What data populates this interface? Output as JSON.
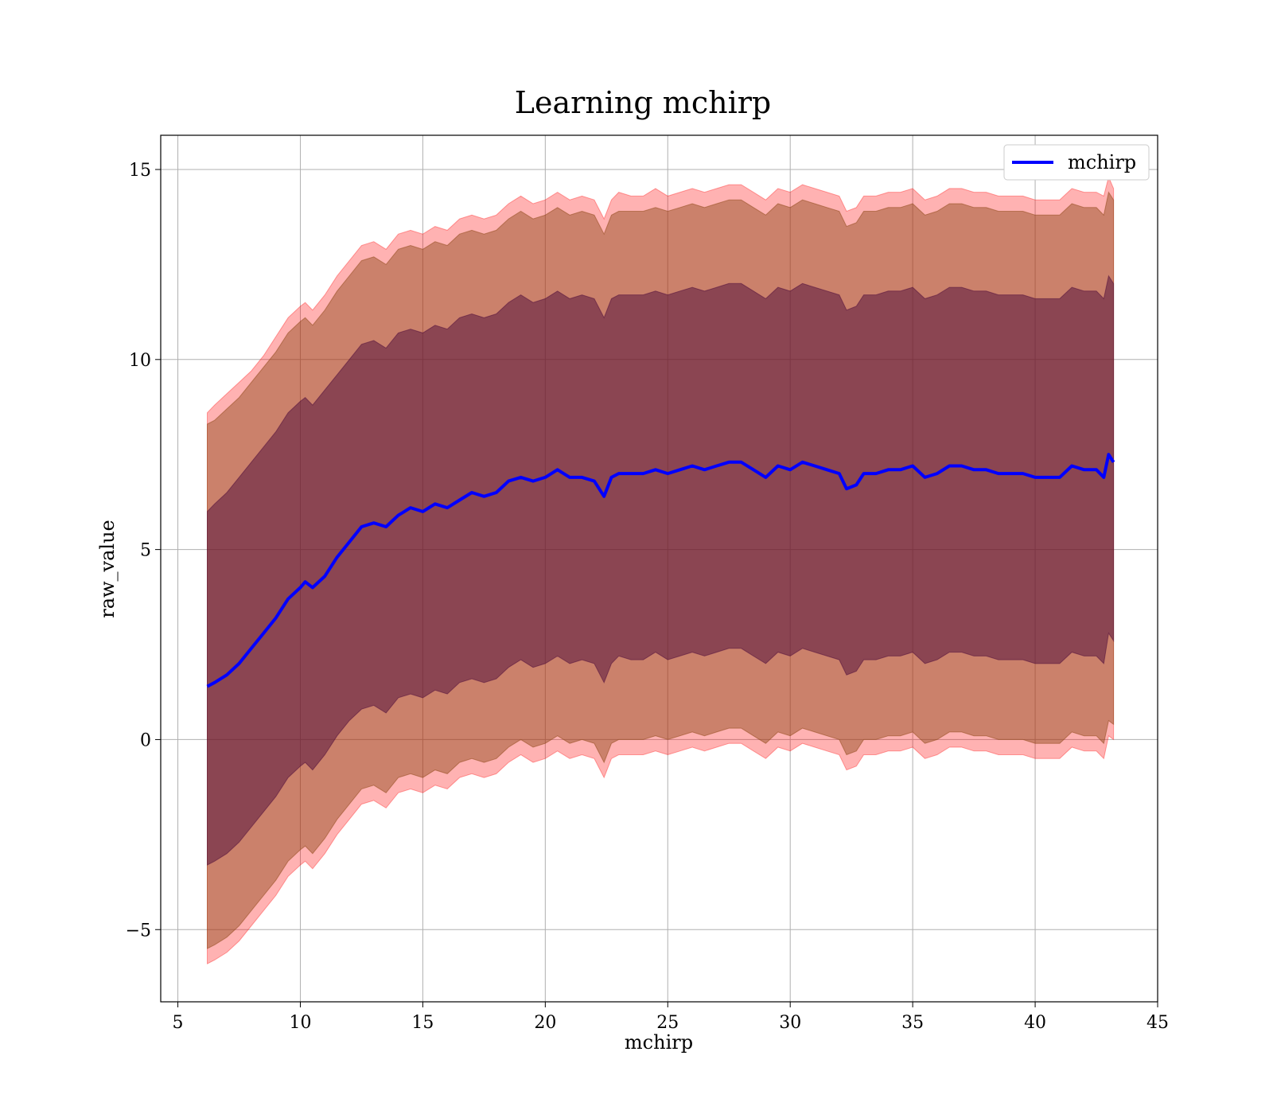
{
  "chart_data": {
    "type": "line",
    "title": "Learning mchirp",
    "xlabel": "mchirp",
    "ylabel": "raw_value",
    "xlim": [
      4.3,
      45
    ],
    "ylim": [
      -6.9,
      15.9
    ],
    "xticks": [
      5,
      10,
      15,
      20,
      25,
      30,
      35,
      40,
      45
    ],
    "yticks": [
      -5,
      0,
      5,
      10,
      15
    ],
    "ytick_labels": [
      "−5",
      "0",
      "5",
      "10",
      "15"
    ],
    "grid": true,
    "legend": {
      "position": "top-right",
      "entries": [
        "mchirp"
      ]
    },
    "colors": {
      "line": "#0000ff",
      "band_outer": "#ff0000",
      "band_middle": "#8b4513",
      "band_inner": "#4b0a3a",
      "grid": "#b0b0b0"
    },
    "series": [
      {
        "name": "mchirp",
        "x": [
          6.2,
          6.5,
          7.0,
          7.5,
          8.0,
          8.5,
          9.0,
          9.5,
          10.0,
          10.2,
          10.5,
          11.0,
          11.5,
          12.0,
          12.5,
          13.0,
          13.5,
          14.0,
          14.5,
          15.0,
          15.5,
          16.0,
          16.5,
          17.0,
          17.5,
          18.0,
          18.5,
          19.0,
          19.5,
          20.0,
          20.5,
          21.0,
          21.5,
          22.0,
          22.4,
          22.7,
          23.0,
          23.5,
          24.0,
          24.5,
          25.0,
          25.5,
          26.0,
          26.5,
          27.0,
          27.5,
          28.0,
          28.5,
          29.0,
          29.5,
          30.0,
          30.5,
          31.0,
          31.5,
          32.0,
          32.3,
          32.7,
          33.0,
          33.5,
          34.0,
          34.5,
          35.0,
          35.5,
          36.0,
          36.5,
          37.0,
          37.5,
          38.0,
          38.5,
          39.0,
          39.5,
          40.0,
          40.5,
          41.0,
          41.5,
          42.0,
          42.5,
          42.8,
          43.0,
          43.2
        ],
        "mean": [
          1.4,
          1.5,
          1.7,
          2.0,
          2.4,
          2.8,
          3.2,
          3.7,
          4.0,
          4.15,
          4.0,
          4.3,
          4.8,
          5.2,
          5.6,
          5.7,
          5.6,
          5.9,
          6.1,
          6.0,
          6.2,
          6.1,
          6.3,
          6.5,
          6.4,
          6.5,
          6.8,
          6.9,
          6.8,
          6.9,
          7.1,
          6.9,
          6.9,
          6.8,
          6.4,
          6.9,
          7.0,
          7.0,
          7.0,
          7.1,
          7.0,
          7.1,
          7.2,
          7.1,
          7.2,
          7.3,
          7.3,
          7.1,
          6.9,
          7.2,
          7.1,
          7.3,
          7.2,
          7.1,
          7.0,
          6.6,
          6.7,
          7.0,
          7.0,
          7.1,
          7.1,
          7.2,
          6.9,
          7.0,
          7.2,
          7.2,
          7.1,
          7.1,
          7.0,
          7.0,
          7.0,
          6.9,
          6.9,
          6.9,
          7.2,
          7.1,
          7.1,
          6.9,
          7.5,
          7.3
        ],
        "band_outer_upper": [
          8.6,
          8.8,
          9.1,
          9.4,
          9.7,
          10.1,
          10.6,
          11.1,
          11.4,
          11.5,
          11.3,
          11.7,
          12.2,
          12.6,
          13.0,
          13.1,
          12.9,
          13.3,
          13.4,
          13.3,
          13.5,
          13.4,
          13.7,
          13.8,
          13.7,
          13.8,
          14.1,
          14.3,
          14.1,
          14.2,
          14.4,
          14.2,
          14.3,
          14.2,
          13.7,
          14.2,
          14.4,
          14.3,
          14.3,
          14.5,
          14.3,
          14.4,
          14.5,
          14.4,
          14.5,
          14.6,
          14.6,
          14.4,
          14.2,
          14.5,
          14.4,
          14.6,
          14.5,
          14.4,
          14.3,
          13.9,
          14.0,
          14.3,
          14.3,
          14.4,
          14.4,
          14.5,
          14.2,
          14.3,
          14.5,
          14.5,
          14.4,
          14.4,
          14.3,
          14.3,
          14.3,
          14.2,
          14.2,
          14.2,
          14.5,
          14.4,
          14.4,
          14.3,
          14.8,
          14.5
        ],
        "band_middle_upper": [
          8.3,
          8.4,
          8.7,
          9.0,
          9.4,
          9.8,
          10.2,
          10.7,
          11.0,
          11.1,
          10.9,
          11.3,
          11.8,
          12.2,
          12.6,
          12.7,
          12.5,
          12.9,
          13.0,
          12.9,
          13.1,
          13.0,
          13.3,
          13.4,
          13.3,
          13.4,
          13.7,
          13.9,
          13.7,
          13.8,
          14.0,
          13.8,
          13.9,
          13.8,
          13.3,
          13.8,
          13.9,
          13.9,
          13.9,
          14.0,
          13.9,
          14.0,
          14.1,
          14.0,
          14.1,
          14.2,
          14.2,
          14.0,
          13.8,
          14.1,
          14.0,
          14.2,
          14.1,
          14.0,
          13.9,
          13.5,
          13.6,
          13.9,
          13.9,
          14.0,
          14.0,
          14.1,
          13.8,
          13.9,
          14.1,
          14.1,
          14.0,
          14.0,
          13.9,
          13.9,
          13.9,
          13.8,
          13.8,
          13.8,
          14.1,
          14.0,
          14.0,
          13.8,
          14.4,
          14.2
        ],
        "band_inner_upper": [
          6.0,
          6.2,
          6.5,
          6.9,
          7.3,
          7.7,
          8.1,
          8.6,
          8.9,
          9.0,
          8.8,
          9.2,
          9.6,
          10.0,
          10.4,
          10.5,
          10.3,
          10.7,
          10.8,
          10.7,
          10.9,
          10.8,
          11.1,
          11.2,
          11.1,
          11.2,
          11.5,
          11.7,
          11.5,
          11.6,
          11.8,
          11.6,
          11.7,
          11.6,
          11.1,
          11.6,
          11.7,
          11.7,
          11.7,
          11.8,
          11.7,
          11.8,
          11.9,
          11.8,
          11.9,
          12.0,
          12.0,
          11.8,
          11.6,
          11.9,
          11.8,
          12.0,
          11.9,
          11.8,
          11.7,
          11.3,
          11.4,
          11.7,
          11.7,
          11.8,
          11.8,
          11.9,
          11.6,
          11.7,
          11.9,
          11.9,
          11.8,
          11.8,
          11.7,
          11.7,
          11.7,
          11.6,
          11.6,
          11.6,
          11.9,
          11.8,
          11.8,
          11.6,
          12.2,
          12.0
        ],
        "band_inner_lower": [
          -3.3,
          -3.2,
          -3.0,
          -2.7,
          -2.3,
          -1.9,
          -1.5,
          -1.0,
          -0.7,
          -0.6,
          -0.8,
          -0.4,
          0.1,
          0.5,
          0.8,
          0.9,
          0.7,
          1.1,
          1.2,
          1.1,
          1.3,
          1.2,
          1.5,
          1.6,
          1.5,
          1.6,
          1.9,
          2.1,
          1.9,
          2.0,
          2.2,
          2.0,
          2.1,
          2.0,
          1.5,
          2.0,
          2.2,
          2.1,
          2.1,
          2.3,
          2.1,
          2.2,
          2.3,
          2.2,
          2.3,
          2.4,
          2.4,
          2.2,
          2.0,
          2.3,
          2.2,
          2.4,
          2.3,
          2.2,
          2.1,
          1.7,
          1.8,
          2.1,
          2.1,
          2.2,
          2.2,
          2.3,
          2.0,
          2.1,
          2.3,
          2.3,
          2.2,
          2.2,
          2.1,
          2.1,
          2.1,
          2.0,
          2.0,
          2.0,
          2.3,
          2.2,
          2.2,
          2.0,
          2.8,
          2.6
        ],
        "band_middle_lower": [
          -5.5,
          -5.4,
          -5.2,
          -4.9,
          -4.5,
          -4.1,
          -3.7,
          -3.2,
          -2.9,
          -2.8,
          -3.0,
          -2.6,
          -2.1,
          -1.7,
          -1.3,
          -1.2,
          -1.4,
          -1.0,
          -0.9,
          -1.0,
          -0.8,
          -0.9,
          -0.6,
          -0.5,
          -0.6,
          -0.5,
          -0.2,
          0.0,
          -0.2,
          -0.1,
          0.1,
          -0.1,
          0.0,
          -0.1,
          -0.6,
          -0.1,
          0.0,
          0.0,
          0.0,
          0.1,
          0.0,
          0.1,
          0.2,
          0.1,
          0.2,
          0.3,
          0.3,
          0.1,
          -0.1,
          0.2,
          0.1,
          0.3,
          0.2,
          0.1,
          0.0,
          -0.4,
          -0.3,
          0.0,
          0.0,
          0.1,
          0.1,
          0.2,
          -0.1,
          0.0,
          0.2,
          0.2,
          0.1,
          0.1,
          0.0,
          0.0,
          0.0,
          -0.1,
          -0.1,
          -0.1,
          0.2,
          0.1,
          0.1,
          -0.1,
          0.5,
          0.4
        ],
        "band_outer_lower": [
          -5.9,
          -5.8,
          -5.6,
          -5.3,
          -4.9,
          -4.5,
          -4.1,
          -3.6,
          -3.3,
          -3.2,
          -3.4,
          -3.0,
          -2.5,
          -2.1,
          -1.7,
          -1.6,
          -1.8,
          -1.4,
          -1.3,
          -1.4,
          -1.2,
          -1.3,
          -1.0,
          -0.9,
          -1.0,
          -0.9,
          -0.6,
          -0.4,
          -0.6,
          -0.5,
          -0.3,
          -0.5,
          -0.4,
          -0.5,
          -1.0,
          -0.5,
          -0.4,
          -0.4,
          -0.4,
          -0.3,
          -0.4,
          -0.3,
          -0.2,
          -0.3,
          -0.2,
          -0.1,
          -0.1,
          -0.3,
          -0.5,
          -0.2,
          -0.3,
          -0.1,
          -0.2,
          -0.3,
          -0.4,
          -0.8,
          -0.7,
          -0.4,
          -0.4,
          -0.3,
          -0.3,
          -0.2,
          -0.5,
          -0.4,
          -0.2,
          -0.2,
          -0.3,
          -0.3,
          -0.4,
          -0.4,
          -0.4,
          -0.5,
          -0.5,
          -0.5,
          -0.2,
          -0.3,
          -0.3,
          -0.5,
          0.1,
          0.0
        ]
      }
    ]
  }
}
